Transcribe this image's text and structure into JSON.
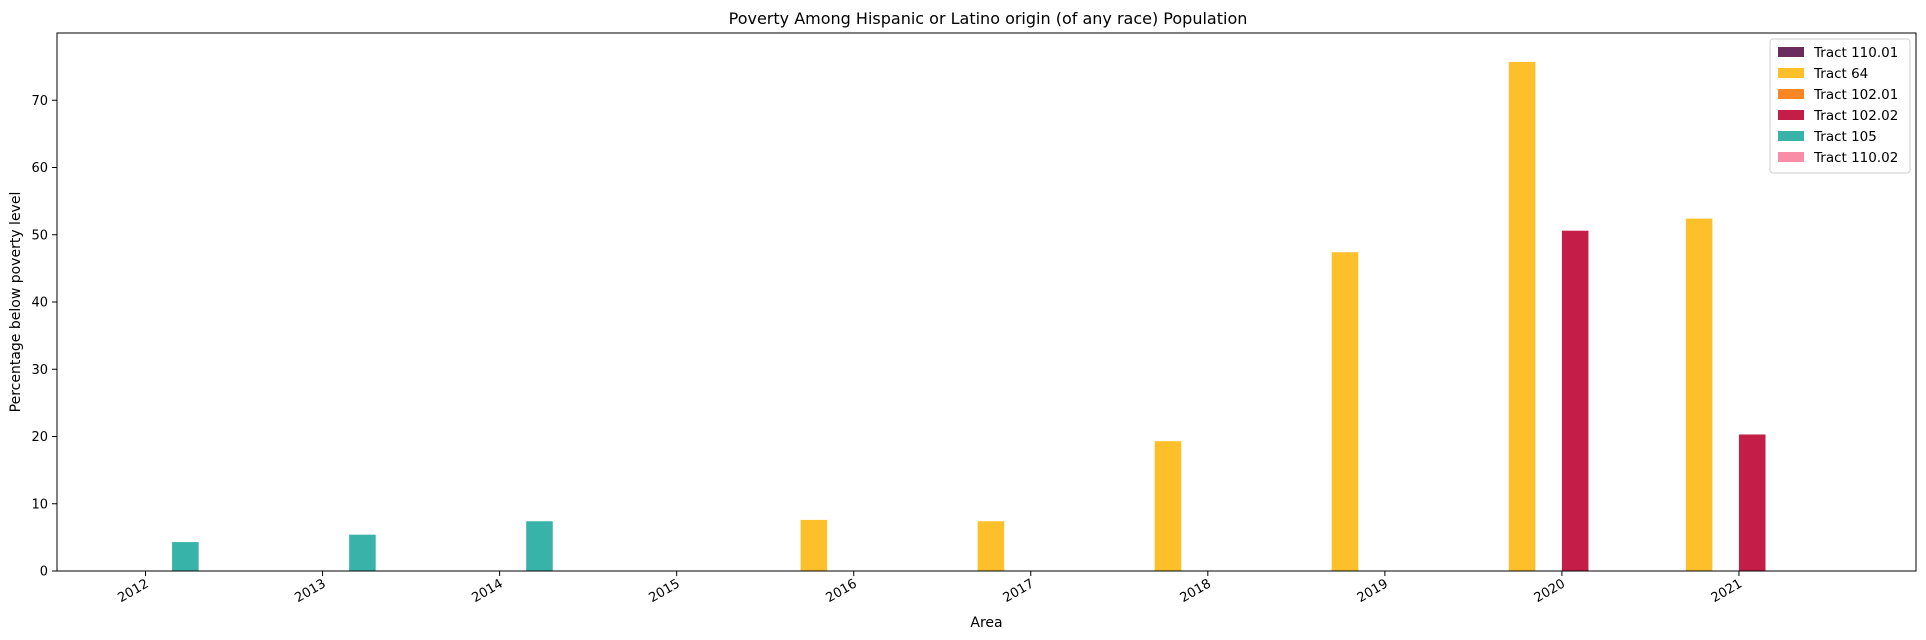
{
  "chart_data": {
    "type": "bar",
    "title": "Poverty Among Hispanic or Latino origin (of any race) Population",
    "xlabel": "Area",
    "ylabel": "Percentage below poverty level",
    "categories": [
      "2012",
      "2013",
      "2014",
      "2015",
      "2016",
      "2017",
      "2018",
      "2019",
      "2020",
      "2021"
    ],
    "ylim": [
      0,
      80
    ],
    "yticks": [
      0,
      10,
      20,
      30,
      40,
      50,
      60,
      70
    ],
    "grid": false,
    "legend_position": "top-right",
    "series": [
      {
        "name": "Tract 110.01",
        "color": "#6a2c5e",
        "values": [
          null,
          null,
          null,
          null,
          null,
          null,
          null,
          null,
          null,
          null
        ]
      },
      {
        "name": "Tract 64",
        "color": "#fdc02b",
        "values": [
          null,
          null,
          null,
          null,
          7.6,
          7.4,
          19.3,
          47.4,
          75.7,
          52.4
        ]
      },
      {
        "name": "Tract 102.01",
        "color": "#fb8724",
        "values": [
          null,
          null,
          null,
          null,
          null,
          null,
          null,
          null,
          null,
          null
        ]
      },
      {
        "name": "Tract 102.02",
        "color": "#c41e48",
        "values": [
          null,
          null,
          null,
          null,
          null,
          null,
          null,
          null,
          50.6,
          20.3
        ]
      },
      {
        "name": "Tract 105",
        "color": "#37b3aa",
        "values": [
          4.3,
          5.4,
          7.4,
          null,
          null,
          null,
          null,
          null,
          null,
          null
        ]
      },
      {
        "name": "Tract 110.02",
        "color": "#f98ca7",
        "values": [
          null,
          null,
          null,
          null,
          null,
          null,
          null,
          null,
          null,
          null
        ]
      }
    ]
  }
}
